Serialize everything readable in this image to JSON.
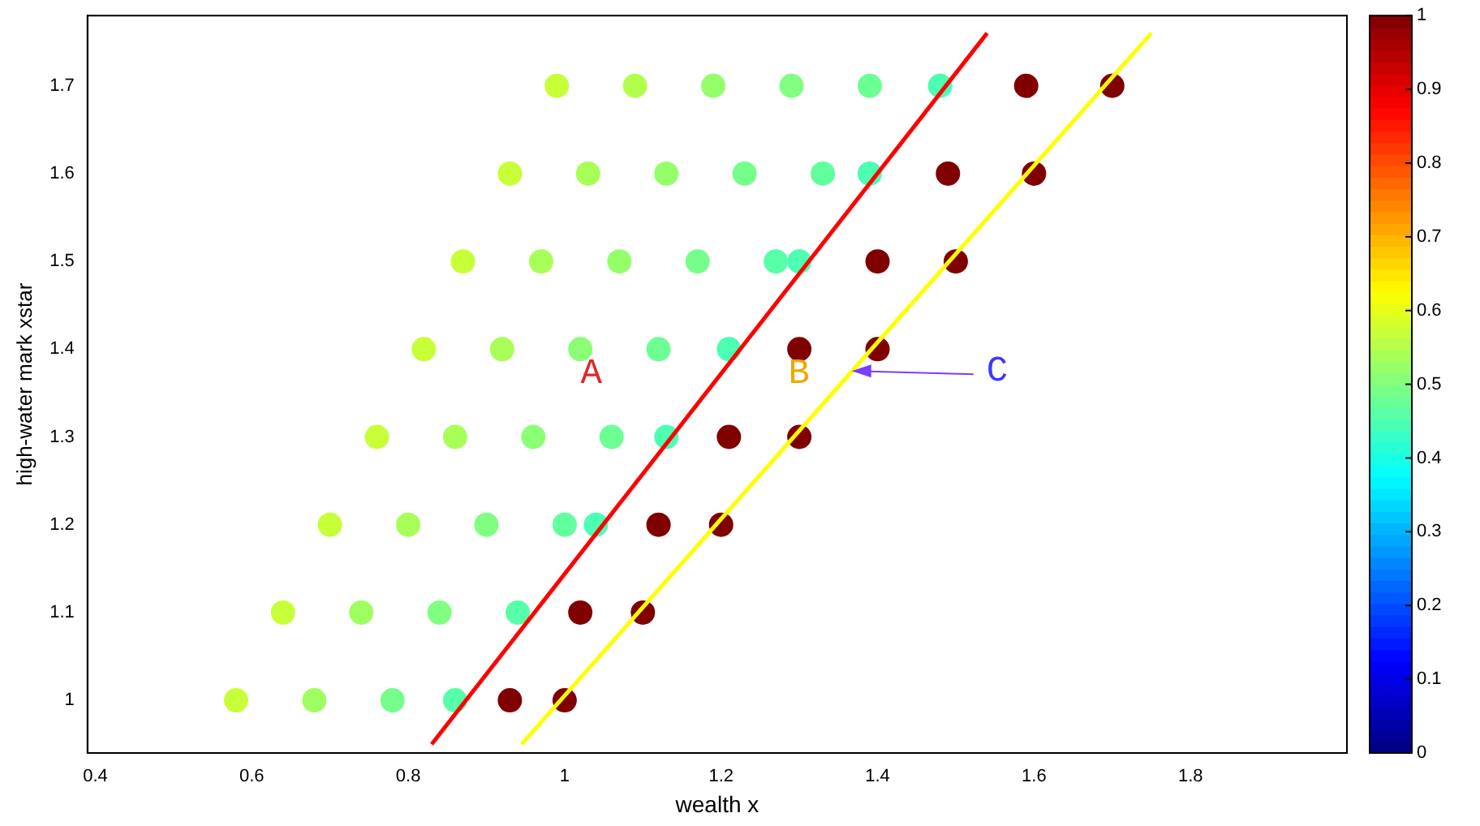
{
  "chart_data": {
    "type": "scatter",
    "xlabel": "wealth x",
    "ylabel": "high-water mark xstar",
    "xlim": [
      0.39,
      2.0
    ],
    "xticks": [
      0.4,
      0.6,
      0.8,
      {
        "value": 1,
        "label": "1"
      },
      1.2,
      1.4,
      1.6,
      1.8
    ],
    "ylim": [
      0.94,
      1.78
    ],
    "yticks": [
      {
        "value": 1,
        "label": "1"
      },
      {
        "value": 1.1,
        "label": "1.1"
      },
      {
        "value": 1.2,
        "label": "1.2"
      },
      {
        "value": 1.3,
        "label": "1.3"
      },
      {
        "value": 1.4,
        "label": "1.4"
      },
      {
        "value": 1.5,
        "label": "1.5"
      },
      {
        "value": 1.6,
        "label": "1.6"
      },
      {
        "value": 1.7,
        "label": "1.7"
      }
    ],
    "clim": [
      0,
      1
    ],
    "cticks": [
      0,
      0.1,
      0.2,
      0.3,
      0.4,
      0.5,
      0.6,
      0.7,
      0.8,
      0.9,
      1
    ],
    "grid": false,
    "legend": false,
    "marker": "circle",
    "annotations": [
      "A",
      "B",
      {
        "text": "C",
        "x": 1.367,
        "y": 1.375
      }
    ],
    "series": [
      {
        "x": [
          0.58,
          0.68,
          0.78,
          0.86,
          0.93,
          1.0,
          0.64,
          0.74,
          0.84,
          0.94,
          1.02,
          1.1,
          0.7,
          0.8,
          0.9,
          1.0,
          1.04,
          1.12,
          1.2,
          0.76,
          0.86,
          0.96,
          1.06,
          1.13,
          1.21,
          1.3,
          0.82,
          0.92,
          1.02,
          1.12,
          1.21,
          1.3,
          1.4,
          0.87,
          0.97,
          1.07,
          1.17,
          1.27,
          1.3,
          1.4,
          1.5,
          0.93,
          1.03,
          1.13,
          1.23,
          1.33,
          1.39,
          1.49,
          1.6,
          0.99,
          1.09,
          1.19,
          1.29,
          1.39,
          1.48,
          1.59,
          1.7
        ],
        "values": [
          1,
          1,
          1,
          1,
          1,
          1,
          1.1,
          1.1,
          1.1,
          1.1,
          1.1,
          1.1,
          1.2,
          1.2,
          1.2,
          1.2,
          1.2,
          1.2,
          1.2,
          1.3,
          1.3,
          1.3,
          1.3,
          1.3,
          1.3,
          1.3,
          1.4,
          1.4,
          1.4,
          1.4,
          1.4,
          1.4,
          1.4,
          1.5,
          1.5,
          1.5,
          1.5,
          1.5,
          1.5,
          1.5,
          1.5,
          1.6,
          1.6,
          1.6,
          1.6,
          1.6,
          1.6,
          1.6,
          1.6,
          1.7,
          1.7,
          1.7,
          1.7,
          1.7,
          1.7,
          1.7,
          1.7
        ],
        "colors": [
          "#c7ff38",
          "#9eff61",
          "#75ff8a",
          "#57ffa8",
          "#800000",
          "#800000",
          "#c7ff38",
          "#9eff61",
          "#80ff80",
          "#57ffa8",
          "#800000",
          "#800000",
          "#c7ff38",
          "#a8ff57",
          "#80ff80",
          "#61ff9e",
          "#4dffb3",
          "#800000",
          "#800000",
          "#c7ff38",
          "#a8ff57",
          "#8aff75",
          "#6bff94",
          "#4dffb3",
          "#800000",
          "#800000",
          "#c7ff38",
          "#a8ff57",
          "#8aff75",
          "#6bff94",
          "#4dffb3",
          "#800000",
          "#800000",
          "#c7ff38",
          "#a8ff57",
          "#94ff6b",
          "#75ff8a",
          "#57ffa8",
          "#4dffb3",
          "#800000",
          "#800000",
          "#c7ff38",
          "#a8ff57",
          "#94ff6b",
          "#75ff8a",
          "#61ff9e",
          "#4dffb3",
          "#800000",
          "#800000",
          "#c7ff38",
          "#b3ff4d",
          "#94ff6b",
          "#80ff80",
          "#6bff94",
          "#4dffb3",
          "#800000",
          "#800000"
        ],
        "cvalues": [
          0.57,
          0.53,
          0.49,
          0.46,
          1,
          1,
          0.57,
          0.53,
          0.5,
          0.46,
          1,
          1,
          0.57,
          0.54,
          0.5,
          0.47,
          0.45,
          1,
          1,
          0.57,
          0.54,
          0.51,
          0.48,
          0.45,
          1,
          1,
          0.57,
          0.54,
          0.51,
          0.48,
          0.45,
          1,
          1,
          0.57,
          0.54,
          0.52,
          0.49,
          0.46,
          0.45,
          1,
          1,
          0.57,
          0.54,
          0.52,
          0.49,
          0.47,
          0.45,
          1,
          1,
          0.57,
          0.55,
          0.52,
          0.5,
          0.48,
          0.45,
          1,
          1
        ]
      },
      {
        "type": "line",
        "marker": "none",
        "color": "#ff0000",
        "x": [
          0.83,
          1.54
        ],
        "values": [
          0.95,
          1.76
        ]
      },
      {
        "type": "line",
        "marker": "none",
        "color": "#ffff00",
        "x": [
          0.945,
          1.75
        ],
        "values": [
          0.95,
          1.76
        ]
      }
    ]
  }
}
